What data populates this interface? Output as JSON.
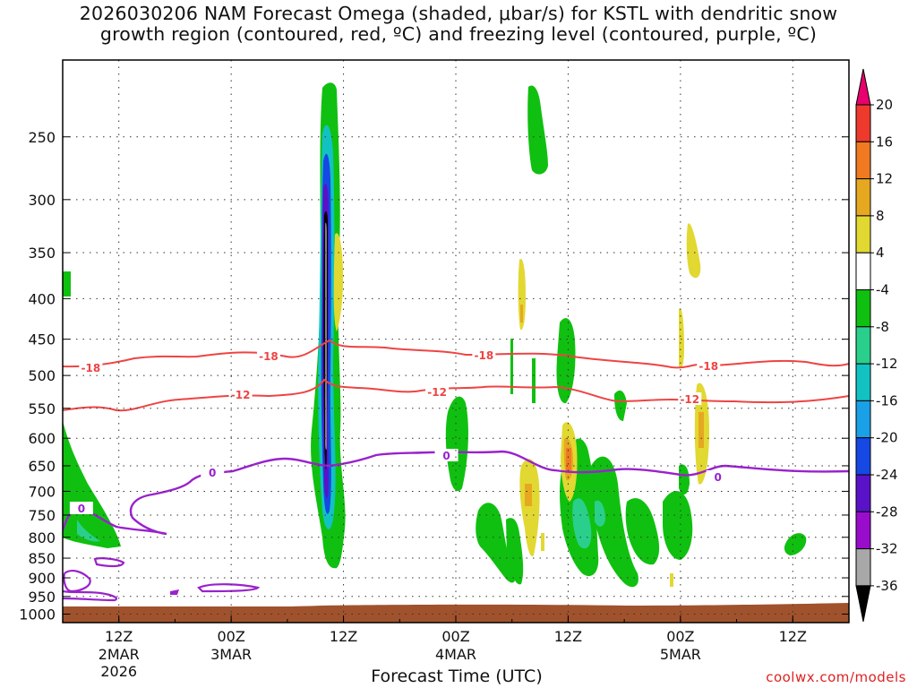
{
  "title_line1": "2026030206 NAM Forecast Omega (shaded, μbar/s) for KSTL with dendritic snow",
  "title_line2": "growth region (contoured, red, ºC) and freezing level (contoured, purple, ºC)",
  "credit": "coolwx.com/models",
  "chart_data": {
    "type": "time-height-contour",
    "title": "2026030206 NAM Forecast Omega (shaded, μbar/s) for KSTL with dendritic snow growth region (contoured, red, ºC) and freezing level (contoured, purple, ºC)",
    "xlabel": "Forecast Time (UTC)",
    "ylabel": "",
    "x_ticks": [
      {
        "label": "12Z",
        "sub1": "2MAR",
        "sub2": "2026",
        "hour": 12
      },
      {
        "label": "00Z",
        "sub1": "3MAR",
        "sub2": "",
        "hour": 24
      },
      {
        "label": "12Z",
        "sub1": "",
        "sub2": "",
        "hour": 36
      },
      {
        "label": "00Z",
        "sub1": "4MAR",
        "sub2": "",
        "hour": 48
      },
      {
        "label": "12Z",
        "sub1": "",
        "sub2": "",
        "hour": 60
      },
      {
        "label": "00Z",
        "sub1": "5MAR",
        "sub2": "",
        "hour": 72
      },
      {
        "label": "12Z",
        "sub1": "",
        "sub2": "",
        "hour": 84
      }
    ],
    "x_range_hours": [
      6,
      90
    ],
    "y_ticks": [
      250,
      300,
      350,
      400,
      450,
      500,
      550,
      600,
      650,
      700,
      750,
      800,
      850,
      900,
      950,
      1000
    ],
    "y_range_mb": [
      200,
      1025
    ],
    "colorbar": {
      "labels": [
        "20",
        "16",
        "12",
        "8",
        "4",
        "-4",
        "-8",
        "-12",
        "-16",
        "-20",
        "-24",
        "-28",
        "-32",
        "-36"
      ],
      "colors": [
        "#e8006e",
        "#ee3a2c",
        "#f07a22",
        "#e6a820",
        "#e2d832",
        "#ffffff",
        "#10c010",
        "#2bcf8c",
        "#12c2c2",
        "#1aa0e6",
        "#1648e4",
        "#5a12c8",
        "#9a0ccc",
        "#a8a8a8",
        "#000000"
      ]
    },
    "contours": {
      "dgz_top": {
        "label": "-18",
        "color": "#ee4444",
        "label_positions_hours": [
          9,
          28,
          51,
          75
        ]
      },
      "dgz_bottom": {
        "label": "-12",
        "color": "#ee4444",
        "label_positions_hours": [
          25,
          46,
          73
        ]
      },
      "freezing_level": {
        "label": "0",
        "color": "#9922cc",
        "label_positions_hours": [
          22,
          47,
          76,
          8
        ]
      }
    }
  }
}
